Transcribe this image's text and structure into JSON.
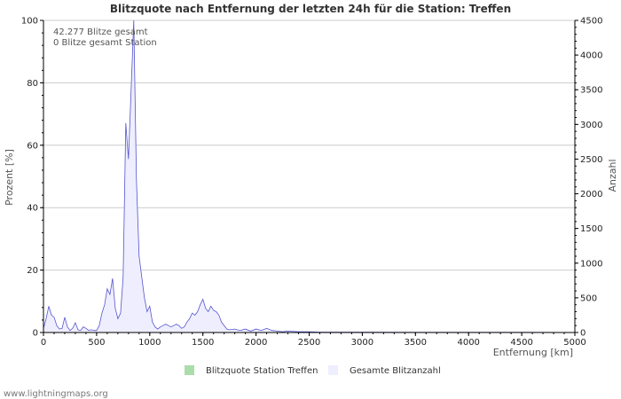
{
  "chart_data": {
    "type": "area",
    "title": "Blitzquote nach Entfernung der letzten 24h für die Station: Treffen",
    "xlabel": "Entfernung   [km]",
    "ylabel_left": "Prozent   [%]",
    "ylabel_right": "Anzahl",
    "xlim": [
      0,
      5000
    ],
    "ylim_left": [
      0,
      100
    ],
    "ylim_right": [
      0,
      4500
    ],
    "xticks": [
      0,
      500,
      1000,
      1500,
      2000,
      2500,
      3000,
      3500,
      4000,
      4500,
      5000
    ],
    "yticks_left": [
      0,
      20,
      40,
      60,
      80,
      100
    ],
    "yticks_right": [
      0,
      500,
      1000,
      1500,
      2000,
      2500,
      3000,
      3500,
      4000,
      4500
    ],
    "grid": true,
    "legend_position": "bottom-center",
    "annotations": [
      "42.277 Blitze gesamt",
      "0 Blitze gesamt Station"
    ],
    "series": [
      {
        "name": "Blitzquote Station Treffen",
        "axis": "left",
        "color": "#aaddaa",
        "x": [],
        "values": []
      },
      {
        "name": "Gesamte Blitzanzahl",
        "axis": "right",
        "color": "#5555cc",
        "fill": "#eeeeff",
        "x": [
          0,
          25,
          50,
          75,
          100,
          125,
          150,
          175,
          200,
          225,
          250,
          275,
          300,
          325,
          350,
          375,
          400,
          425,
          450,
          475,
          500,
          525,
          550,
          575,
          600,
          625,
          650,
          675,
          700,
          725,
          750,
          775,
          800,
          825,
          850,
          875,
          900,
          925,
          950,
          975,
          1000,
          1025,
          1050,
          1075,
          1100,
          1125,
          1150,
          1175,
          1200,
          1225,
          1250,
          1275,
          1300,
          1325,
          1350,
          1375,
          1400,
          1425,
          1450,
          1475,
          1500,
          1525,
          1550,
          1575,
          1600,
          1625,
          1650,
          1675,
          1700,
          1725,
          1750,
          1800,
          1850,
          1900,
          1950,
          2000,
          2050,
          2100,
          2150,
          2200,
          2250,
          2300,
          2400,
          2500,
          2600,
          2800,
          3000,
          3500,
          4000,
          4500,
          5000
        ],
        "values": [
          60,
          200,
          380,
          250,
          220,
          100,
          50,
          60,
          220,
          80,
          30,
          60,
          140,
          40,
          30,
          80,
          60,
          30,
          40,
          30,
          30,
          100,
          280,
          400,
          630,
          550,
          780,
          350,
          200,
          280,
          800,
          3020,
          2500,
          3500,
          4500,
          2200,
          1100,
          800,
          500,
          300,
          380,
          150,
          80,
          50,
          80,
          100,
          120,
          100,
          80,
          100,
          120,
          100,
          60,
          80,
          150,
          200,
          280,
          250,
          300,
          400,
          480,
          350,
          300,
          380,
          320,
          300,
          250,
          150,
          100,
          50,
          40,
          50,
          30,
          50,
          20,
          50,
          30,
          60,
          30,
          20,
          10,
          20,
          10,
          10,
          5,
          5,
          5,
          3,
          2,
          2,
          0
        ]
      }
    ]
  },
  "footer": {
    "credit": "www.lightningmaps.org"
  }
}
